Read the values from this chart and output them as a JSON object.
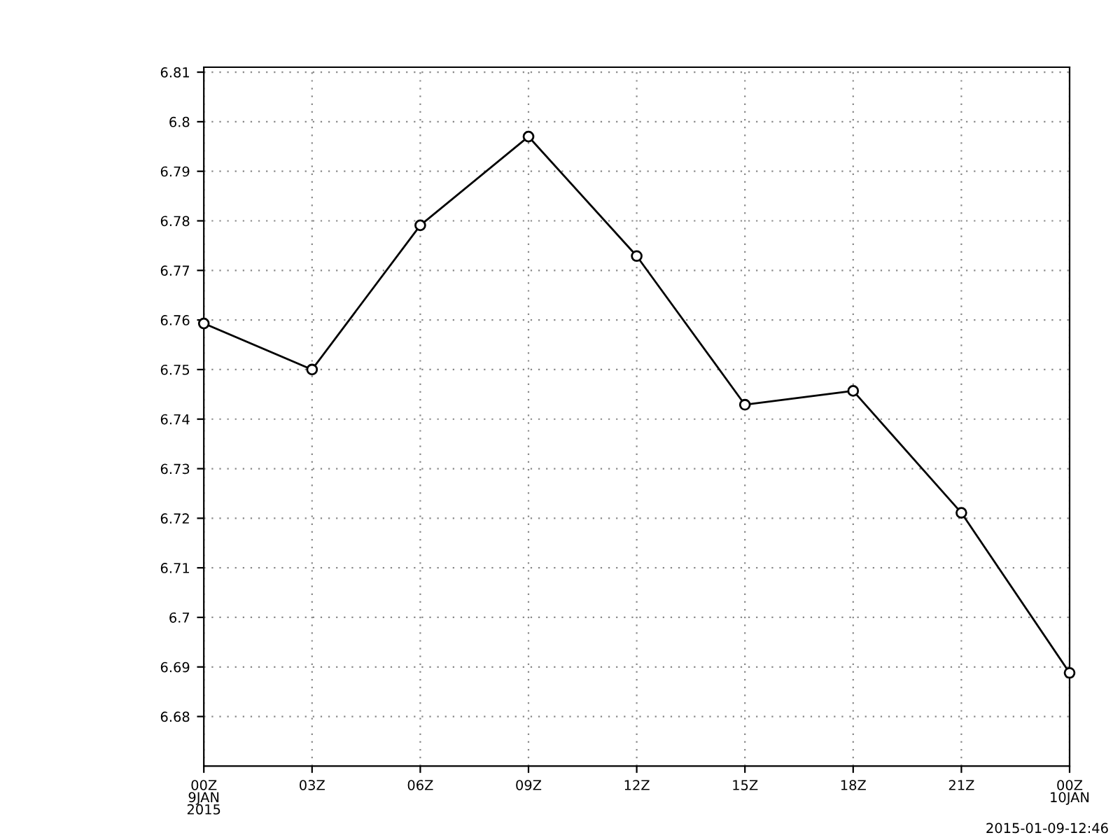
{
  "chart_data": {
    "type": "line",
    "x": [
      0,
      3,
      6,
      9,
      12,
      15,
      18,
      21,
      24
    ],
    "series": [
      {
        "color": "#000000",
        "values": [
          6.7593,
          6.75,
          6.7791,
          6.797,
          6.7729,
          6.7429,
          6.7457,
          6.7211,
          6.6888
        ]
      }
    ],
    "xlim": [
      0,
      24
    ],
    "xticks": [
      {
        "value": 0,
        "label": "00Z\n9JAN\n2015"
      },
      {
        "value": 3,
        "label": "03Z"
      },
      {
        "value": 6,
        "label": "06Z"
      },
      {
        "value": 9,
        "label": "09Z"
      },
      {
        "value": 12,
        "label": "12Z"
      },
      {
        "value": 15,
        "label": "15Z"
      },
      {
        "value": 18,
        "label": "18Z"
      },
      {
        "value": 21,
        "label": "21Z"
      },
      {
        "value": 24,
        "label": "00Z\n10JAN"
      }
    ],
    "ylim": [
      6.67,
      6.811
    ],
    "yticks": [
      6.68,
      6.69,
      6.7,
      6.71,
      6.72,
      6.73,
      6.74,
      6.75,
      6.76,
      6.77,
      6.78,
      6.79,
      6.8,
      6.81
    ],
    "grid": true,
    "marker": "circle",
    "line_style": "solid",
    "annotations": [
      "2015-01-09-12:46"
    ]
  }
}
